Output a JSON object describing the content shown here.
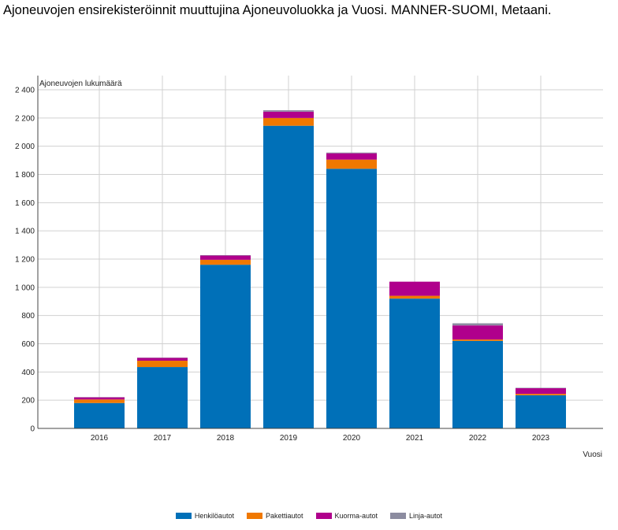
{
  "title": "Ajoneuvojen ensirekisteröinnit muuttujina Ajoneuvoluokka ja Vuosi. MANNER-SUOMI, Metaani.",
  "chart_data": {
    "type": "bar",
    "stacked": true,
    "categories": [
      "2016",
      "2017",
      "2018",
      "2019",
      "2020",
      "2021",
      "2022",
      "2023"
    ],
    "series": [
      {
        "name": "Henkilöautot",
        "color": "#0070b8",
        "values": [
          180,
          435,
          1160,
          2145,
          1840,
          920,
          620,
          235
        ]
      },
      {
        "name": "Pakettiautot",
        "color": "#f07800",
        "values": [
          25,
          45,
          35,
          55,
          65,
          20,
          10,
          10
        ]
      },
      {
        "name": "Kuorma-autot",
        "color": "#b0008c",
        "values": [
          15,
          20,
          30,
          45,
          45,
          100,
          100,
          40
        ]
      },
      {
        "name": "Linja-autot",
        "color": "#8c8ca0",
        "values": [
          2,
          2,
          3,
          10,
          5,
          0,
          15,
          3
        ]
      }
    ],
    "ylabel": "Ajoneuvojen lukumäärä",
    "xlabel": "Vuosi",
    "ylim": [
      0,
      2400
    ],
    "yticks": [
      "0",
      "200",
      "400",
      "600",
      "800",
      "1 000",
      "1 200",
      "1 400",
      "1 600",
      "1 800",
      "2 000",
      "2 200",
      "2 400"
    ],
    "grid": true,
    "legend": "bottom"
  }
}
